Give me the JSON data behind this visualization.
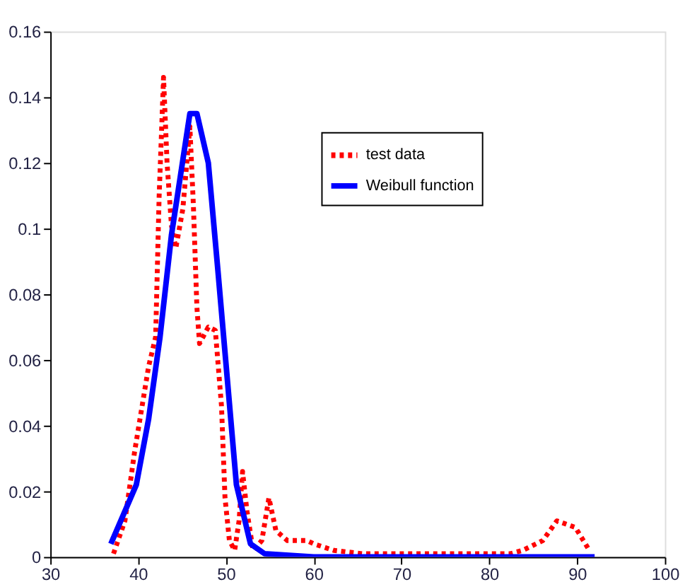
{
  "chart_data": {
    "type": "line",
    "xlim": [
      30,
      100
    ],
    "xticks": [
      30,
      40,
      50,
      60,
      70,
      80,
      90,
      100
    ],
    "ylim": [
      0,
      0.16
    ],
    "yticks": [
      0,
      0.02,
      0.04,
      0.06,
      0.08,
      0.1,
      0.12,
      0.14,
      0.16
    ],
    "grid": false,
    "legend": "top right",
    "marker": "none",
    "series": [
      {
        "name": "test data",
        "color": "#ff0000",
        "line_style": "dotted",
        "x": [
          37.2,
          38.5,
          39.6,
          41.2,
          42.0,
          42.4,
          42.9,
          43.3,
          43.8,
          44.3,
          45.1,
          45.9,
          46.3,
          46.7,
          47.0,
          48.0,
          48.8,
          49.5,
          49.9,
          50.4,
          51.0,
          51.5,
          51.9,
          52.4,
          53.1,
          54.1,
          54.9,
          55.7,
          57.0,
          59.2,
          60.0,
          62.3,
          65.5,
          76.0,
          82.4,
          83.8,
          86.1,
          87.7,
          89.8,
          91.4
        ],
        "values": [
          0.001,
          0.011,
          0.032,
          0.058,
          0.067,
          0.11,
          0.146,
          0.12,
          0.101,
          0.094,
          0.106,
          0.131,
          0.107,
          0.076,
          0.065,
          0.07,
          0.069,
          0.046,
          0.018,
          0.005,
          0.002,
          0.011,
          0.026,
          0.014,
          0.002,
          0.005,
          0.018,
          0.008,
          0.005,
          0.005,
          0.004,
          0.002,
          0.001,
          0.001,
          0.001,
          0.002,
          0.005,
          0.011,
          0.009,
          0.002
        ]
      },
      {
        "name": "Weibull function",
        "color": "#0000ff",
        "line_style": "solid",
        "x": [
          36.9,
          39.8,
          41.2,
          42.5,
          43.8,
          45.9,
          46.7,
          48.0,
          49.1,
          50.2,
          51.2,
          52.8,
          54.4,
          60.0,
          92.0
        ],
        "values": [
          0.004,
          0.022,
          0.042,
          0.067,
          0.098,
          0.135,
          0.135,
          0.12,
          0.087,
          0.053,
          0.022,
          0.004,
          0.001,
          0,
          0
        ]
      }
    ]
  }
}
